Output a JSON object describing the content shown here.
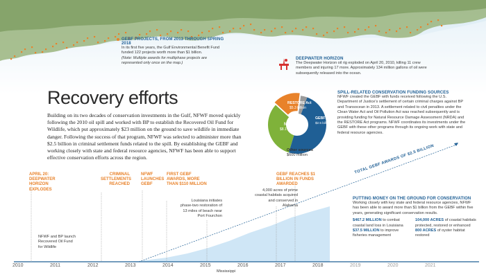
{
  "section_title": "Recovery efforts",
  "intro_text": "Building on its two decades of conservation investments in the Gulf, NFWF moved quickly following the 2010 oil spill and worked with BP to establish the Recovered Oil Fund for Wildlife, which put approximately $23 million on the ground to save wildlife in immediate danger. Following the success of that program, NFWF was selected to administer more than $2.5 billion in criminal settlement funds related to the spill. By establishing the GEBF and working closely with state and federal resource agencies, NFWF has been able to support effective conservation efforts across the region.",
  "map_legend": {
    "gebf": {
      "title": "GEBF PROJECTS, FROM 2013 THROUGH SPRING 2018",
      "body": "In its first five years, the Gulf Environmental Benefit Fund funded 122 projects worth more than $1 billion.",
      "note": "(Note: Multiple awards for multiphase projects are represented only once on the map.)"
    },
    "deepwater": {
      "title": "DEEPWATER HORIZON",
      "body": "The Deepwater Horizon oil rig exploded on April 20, 2010, killing 11 crew members and injuring 17 more. Approximately 134 million gallons of oil were subsequently released into the ocean."
    }
  },
  "funding": {
    "title": "SPILL-RELATED CONSERVATION FUNDING SOURCES",
    "body": "NFWF created the GEBF with funds received following the U.S. Department of Justice's settlement of certain criminal charges against BP and Transocean in 2013. A settlement related to civil penalties under the Clean Water Act and Oil Pollution Act was reached subsequently and is providing funding for Natural Resource Damage Assessment (NRDA) and the RESTORE Act programs. NFWF coordinates its investments under the GEBF with these other programs through its ongoing work with state and federal resource agencies.",
    "slices": [
      {
        "label": "NRDA",
        "value": "$8.1 billion",
        "amount": 8.1,
        "color": "#1f5f95"
      },
      {
        "label": "RESTORE Act",
        "value": "$5.3 billion",
        "amount": 5.3,
        "color": "#7fb23a"
      },
      {
        "label": "GEBF",
        "value": "$2.5 billion",
        "amount": 2.5,
        "color": "#e8822a"
      },
      {
        "label": "Other sources",
        "value": "$600 million",
        "amount": 0.6,
        "color": "#9a9a9a"
      }
    ]
  },
  "timeline": {
    "years": [
      "2010",
      "2011",
      "2012",
      "2013",
      "2014",
      "2015",
      "2016",
      "2017",
      "2018",
      "2019",
      "2020",
      "2021"
    ],
    "total_label": "TOTAL GEBF AWARDS OF $2.5 BILLION",
    "events": [
      {
        "text": "APRIL 20: DEEPWATER HORIZON EXPLODES"
      },
      {
        "text": "CRIMINAL SETTLEMENTS REACHED"
      },
      {
        "text": "NFWF LAUNCHES GEBF"
      },
      {
        "text": "FIRST GEBF AWARDS, MORE THAN $110 MILLION"
      },
      {
        "text": "GEBF REACHES $1 BILLION IN FUNDS AWARDED"
      }
    ],
    "notes": [
      {
        "text": "NFWF and BP launch Recovered Oil Fund for Wildlife"
      },
      {
        "text": "Louisiana initiates phase-two restoration of 13 miles of beach near Port Fourchon"
      },
      {
        "text": "4,000 acres of prime coastal habitats acquired and conserved in Alabama"
      },
      {
        "text": "Mississippi"
      }
    ]
  },
  "ground": {
    "title": "PUTTING MONEY ON THE GROUND FOR CONSERVATION",
    "body": "Working closely with key state and federal resource agencies, NFWF has been able to award more than $1 billion from the GEBF within five years, generating significant conservation results.",
    "stats": [
      {
        "big": "$467.2 MILLION",
        "rest": " to combat coastal land loss in Louisiana"
      },
      {
        "big": "$37.5 MILLION",
        "rest": " to improve fisheries management"
      },
      {
        "big": "104,000 ACRES",
        "rest": " of coastal habitats protected, restored or enhanced"
      },
      {
        "big": "800 ACRES",
        "rest": " of oyster habitat restored"
      }
    ]
  },
  "colors": {
    "accent_blue": "#1f5f95",
    "accent_orange": "#e8822a",
    "area_blue": "#cfe6f6"
  }
}
